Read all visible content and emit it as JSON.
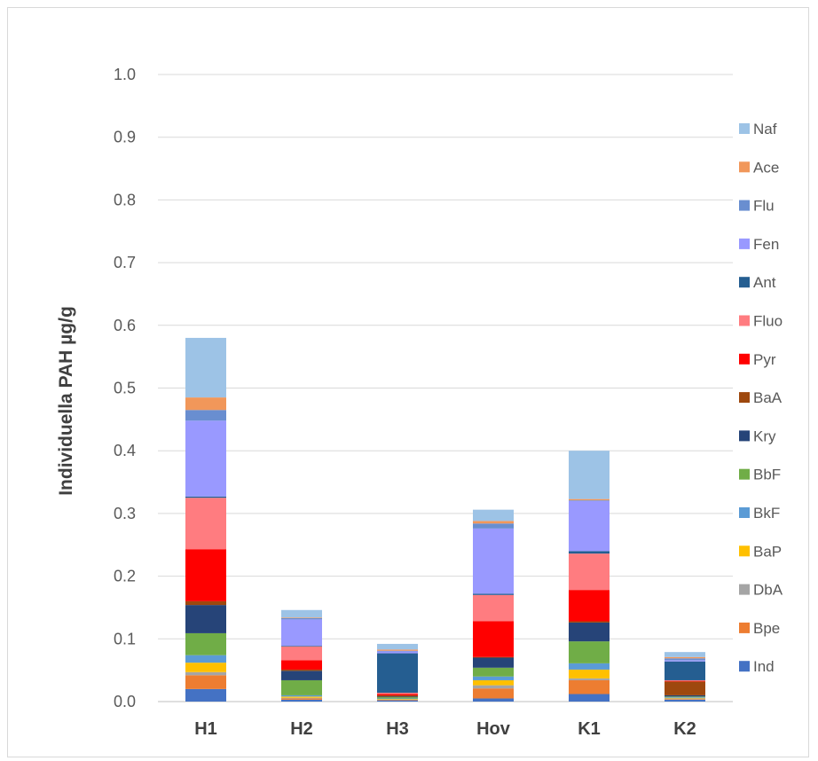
{
  "chart_data": {
    "type": "bar",
    "stacked": true,
    "ylabel": "Individuella PAH µg/g",
    "xlabel": "",
    "ylim": [
      0,
      1.0
    ],
    "yticks": [
      "0.0",
      "0.1",
      "0.2",
      "0.3",
      "0.4",
      "0.5",
      "0.6",
      "0.7",
      "0.8",
      "0.9",
      "1.0"
    ],
    "grid": true,
    "legend_position": "right",
    "categories": [
      "H1",
      "H2",
      "H3",
      "Hov",
      "K1",
      "K2"
    ],
    "series": [
      {
        "name": "Ind",
        "color": "#4472C4",
        "values": [
          0.02,
          0.003,
          0.002,
          0.005,
          0.012,
          0.003
        ]
      },
      {
        "name": "Bpe",
        "color": "#ED7D31",
        "values": [
          0.022,
          0.002,
          0.001,
          0.016,
          0.022,
          0.001
        ]
      },
      {
        "name": "DbA",
        "color": "#A5A5A5",
        "values": [
          0.005,
          0.001,
          0.0,
          0.005,
          0.003,
          0.001
        ]
      },
      {
        "name": "BaP",
        "color": "#FFC000",
        "values": [
          0.015,
          0.002,
          0.001,
          0.008,
          0.014,
          0.001
        ]
      },
      {
        "name": "BkF",
        "color": "#5B9BD5",
        "values": [
          0.012,
          0.002,
          0.001,
          0.006,
          0.01,
          0.001
        ]
      },
      {
        "name": "BbF",
        "color": "#70AD47",
        "values": [
          0.035,
          0.024,
          0.002,
          0.014,
          0.035,
          0.001
        ]
      },
      {
        "name": "Kry",
        "color": "#264478",
        "values": [
          0.045,
          0.015,
          0.001,
          0.016,
          0.03,
          0.002
        ]
      },
      {
        "name": "BaA",
        "color": "#9E480E",
        "values": [
          0.006,
          0.002,
          0.002,
          0.001,
          0.002,
          0.022
        ]
      },
      {
        "name": "Pyr",
        "color": "#FF0000",
        "values": [
          0.083,
          0.015,
          0.002,
          0.057,
          0.05,
          0.001
        ]
      },
      {
        "name": "Fluo",
        "color": "#FF7C80",
        "values": [
          0.082,
          0.022,
          0.002,
          0.042,
          0.058,
          0.001
        ]
      },
      {
        "name": "Ant",
        "color": "#255E91",
        "values": [
          0.002,
          0.001,
          0.063,
          0.002,
          0.004,
          0.03
        ]
      },
      {
        "name": "Fen",
        "color": "#9999FF",
        "values": [
          0.121,
          0.042,
          0.003,
          0.104,
          0.08,
          0.002
        ]
      },
      {
        "name": "Flu",
        "color": "#698ED0",
        "values": [
          0.017,
          0.002,
          0.001,
          0.008,
          0.001,
          0.003
        ]
      },
      {
        "name": "Ace",
        "color": "#F1975A",
        "values": [
          0.02,
          0.001,
          0.002,
          0.004,
          0.002,
          0.002
        ]
      },
      {
        "name": "Naf",
        "color": "#9DC3E6",
        "values": [
          0.095,
          0.012,
          0.009,
          0.018,
          0.077,
          0.008
        ]
      }
    ]
  }
}
